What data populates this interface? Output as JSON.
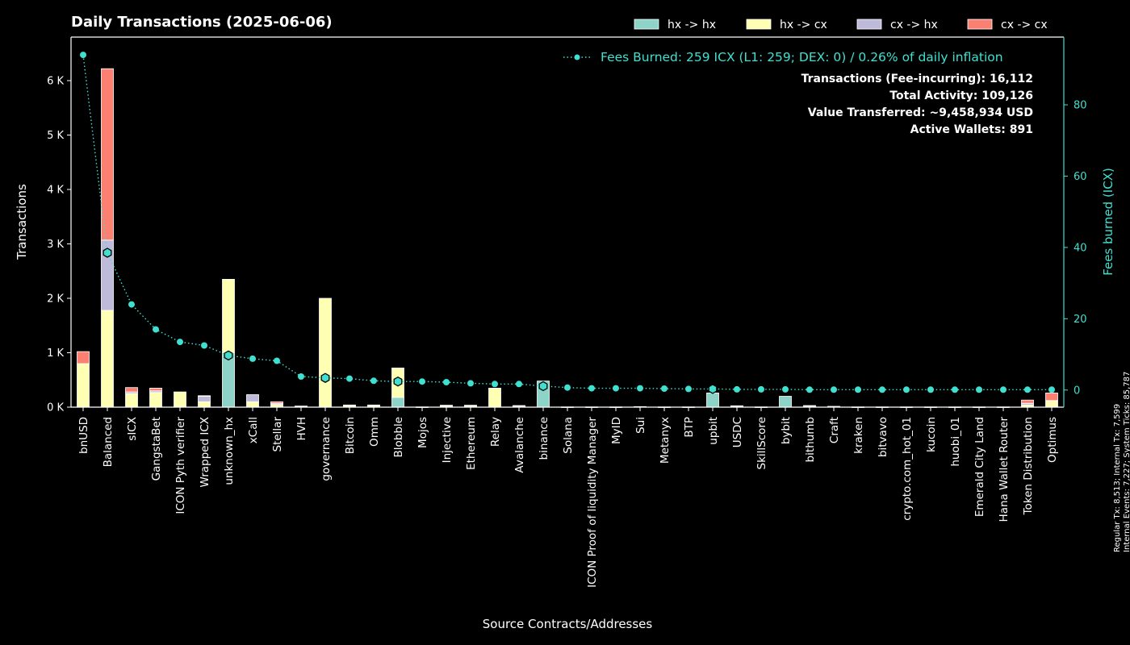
{
  "chart_data": {
    "type": "bar",
    "stacked": true,
    "title": "Daily Transactions (2025-06-06)",
    "xlabel": "Source Contracts/Addresses",
    "ylabel": "Transactions",
    "y2label": "Fees burned (ICX)",
    "ylim": [
      0,
      6800
    ],
    "y2lim": [
      -4.8,
      99
    ],
    "yticks": [
      {
        "value": 0,
        "label": "0 K"
      },
      {
        "value": 1000,
        "label": "1 K"
      },
      {
        "value": 2000,
        "label": "2 K"
      },
      {
        "value": 3000,
        "label": "3 K"
      },
      {
        "value": 4000,
        "label": "4 K"
      },
      {
        "value": 5000,
        "label": "5 K"
      },
      {
        "value": 6000,
        "label": "6 K"
      }
    ],
    "y2ticks": [
      {
        "value": 0,
        "label": "0"
      },
      {
        "value": 20,
        "label": "20"
      },
      {
        "value": 40,
        "label": "40"
      },
      {
        "value": 60,
        "label": "60"
      },
      {
        "value": 80,
        "label": "80"
      }
    ],
    "categories": [
      "bnUSD",
      "Balanced",
      "sICX",
      "GangstaBet",
      "ICON Pyth verifier",
      "Wrapped ICX",
      "unknown_hx",
      "xCall",
      "Stellar",
      "HVH",
      "governance",
      "Bitcoin",
      "Omm",
      "Blobble",
      "Mojos",
      "Injective",
      "Ethereum",
      "Relay",
      "Avalanche",
      "binance",
      "Solana",
      "ICON Proof of liquidity Manager",
      "MyID",
      "Sui",
      "Metanyx",
      "BTP",
      "upbit",
      "USDC",
      "SkillScore",
      "bybit",
      "bithumb",
      "Craft",
      "kraken",
      "bitvavo",
      "crypto.com_hot_01",
      "kucoin",
      "huobi_01",
      "Emerald City Land",
      "Hana Wallet Router",
      "Token Distribution",
      "Optimus"
    ],
    "legend_position": "top-right",
    "series": [
      {
        "name": "hx -> hx",
        "color": "#8dd3c7",
        "values": [
          0,
          0,
          0,
          0,
          0,
          0,
          1000,
          0,
          0,
          0,
          0,
          0,
          0,
          180,
          0,
          0,
          0,
          0,
          0,
          480,
          0,
          0,
          0,
          0,
          0,
          0,
          260,
          0,
          0,
          200,
          0,
          0,
          0,
          0,
          0,
          0,
          0,
          0,
          0,
          0,
          0
        ]
      },
      {
        "name": "hx -> cx",
        "color": "#ffffb3",
        "values": [
          800,
          1780,
          250,
          270,
          280,
          100,
          1350,
          100,
          50,
          10,
          2000,
          30,
          30,
          540,
          5,
          30,
          30,
          350,
          20,
          0,
          5,
          5,
          5,
          10,
          5,
          5,
          0,
          20,
          5,
          0,
          20,
          10,
          5,
          5,
          5,
          5,
          5,
          5,
          5,
          40,
          120
        ]
      },
      {
        "name": "cx -> hx",
        "color": "#bebada",
        "values": [
          0,
          1290,
          30,
          30,
          0,
          100,
          0,
          130,
          20,
          10,
          0,
          10,
          10,
          0,
          0,
          5,
          5,
          0,
          10,
          0,
          0,
          0,
          0,
          0,
          0,
          0,
          0,
          5,
          0,
          0,
          10,
          5,
          0,
          0,
          0,
          0,
          0,
          0,
          0,
          30,
          0
        ]
      },
      {
        "name": "cx -> cx",
        "color": "#fb8072",
        "values": [
          220,
          3150,
          80,
          50,
          0,
          10,
          0,
          0,
          30,
          0,
          0,
          0,
          0,
          0,
          0,
          0,
          0,
          0,
          0,
          0,
          0,
          0,
          0,
          0,
          0,
          0,
          0,
          0,
          0,
          0,
          0,
          0,
          0,
          0,
          0,
          0,
          0,
          0,
          0,
          60,
          140
        ]
      }
    ],
    "fees_line": {
      "name": "Fees Burned: 259 ICX (L1: 259; DEX: 0) / 0.26% of daily inflation",
      "color": "#40e0d0",
      "values": [
        94,
        38.5,
        24,
        17,
        13.5,
        12.5,
        9.7,
        8.8,
        8.2,
        3.8,
        3.4,
        3.2,
        2.6,
        2.4,
        2.4,
        2.2,
        1.9,
        1.7,
        1.7,
        1.1,
        0.7,
        0.5,
        0.5,
        0.5,
        0.4,
        0.3,
        0.3,
        0.2,
        0.2,
        0.2,
        0.1,
        0.1,
        0.1,
        0.1,
        0.1,
        0.1,
        0.1,
        0.1,
        0.1,
        0.1,
        0.1
      ],
      "highlight_indices": [
        1,
        6,
        10,
        13,
        19,
        26
      ]
    },
    "annotations": [
      "Transactions (Fee-incurring): 16,112",
      "Total Activity: 109,126",
      "Value Transferred: ~9,458,934 USD",
      "Active Wallets: 891"
    ],
    "side_notes": [
      "Regular Tx: 8,513; Internal Tx: 7,599",
      "Internal Events: 7,227; System Ticks: 85,787"
    ]
  }
}
